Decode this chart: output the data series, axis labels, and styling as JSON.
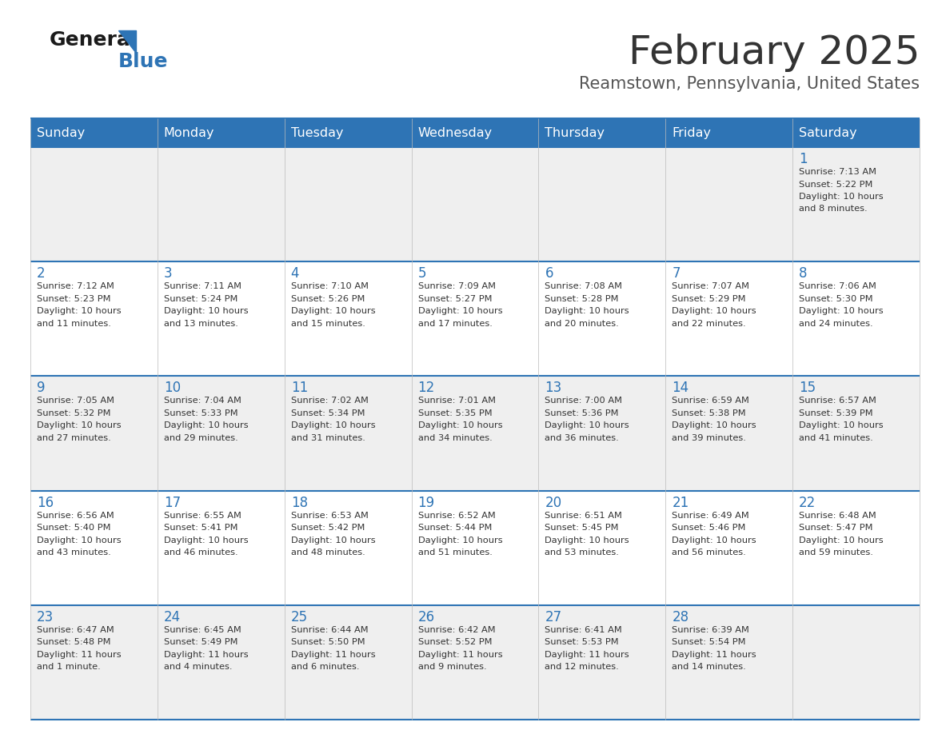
{
  "title": "February 2025",
  "subtitle": "Reamstown, Pennsylvania, United States",
  "header_bg": "#2e74b5",
  "header_text_color": "#ffffff",
  "day_names": [
    "Sunday",
    "Monday",
    "Tuesday",
    "Wednesday",
    "Thursday",
    "Friday",
    "Saturday"
  ],
  "row_bg_odd": "#efefef",
  "row_bg_even": "#ffffff",
  "separator_color": "#2e74b5",
  "day_number_color": "#2e74b5",
  "info_text_color": "#333333",
  "title_color": "#333333",
  "subtitle_color": "#555555",
  "calendar": [
    [
      {
        "day": null,
        "sunrise": null,
        "sunset": null,
        "daylight": null
      },
      {
        "day": null,
        "sunrise": null,
        "sunset": null,
        "daylight": null
      },
      {
        "day": null,
        "sunrise": null,
        "sunset": null,
        "daylight": null
      },
      {
        "day": null,
        "sunrise": null,
        "sunset": null,
        "daylight": null
      },
      {
        "day": null,
        "sunrise": null,
        "sunset": null,
        "daylight": null
      },
      {
        "day": null,
        "sunrise": null,
        "sunset": null,
        "daylight": null
      },
      {
        "day": 1,
        "sunrise": "7:13 AM",
        "sunset": "5:22 PM",
        "daylight": "10 hours\nand 8 minutes."
      }
    ],
    [
      {
        "day": 2,
        "sunrise": "7:12 AM",
        "sunset": "5:23 PM",
        "daylight": "10 hours\nand 11 minutes."
      },
      {
        "day": 3,
        "sunrise": "7:11 AM",
        "sunset": "5:24 PM",
        "daylight": "10 hours\nand 13 minutes."
      },
      {
        "day": 4,
        "sunrise": "7:10 AM",
        "sunset": "5:26 PM",
        "daylight": "10 hours\nand 15 minutes."
      },
      {
        "day": 5,
        "sunrise": "7:09 AM",
        "sunset": "5:27 PM",
        "daylight": "10 hours\nand 17 minutes."
      },
      {
        "day": 6,
        "sunrise": "7:08 AM",
        "sunset": "5:28 PM",
        "daylight": "10 hours\nand 20 minutes."
      },
      {
        "day": 7,
        "sunrise": "7:07 AM",
        "sunset": "5:29 PM",
        "daylight": "10 hours\nand 22 minutes."
      },
      {
        "day": 8,
        "sunrise": "7:06 AM",
        "sunset": "5:30 PM",
        "daylight": "10 hours\nand 24 minutes."
      }
    ],
    [
      {
        "day": 9,
        "sunrise": "7:05 AM",
        "sunset": "5:32 PM",
        "daylight": "10 hours\nand 27 minutes."
      },
      {
        "day": 10,
        "sunrise": "7:04 AM",
        "sunset": "5:33 PM",
        "daylight": "10 hours\nand 29 minutes."
      },
      {
        "day": 11,
        "sunrise": "7:02 AM",
        "sunset": "5:34 PM",
        "daylight": "10 hours\nand 31 minutes."
      },
      {
        "day": 12,
        "sunrise": "7:01 AM",
        "sunset": "5:35 PM",
        "daylight": "10 hours\nand 34 minutes."
      },
      {
        "day": 13,
        "sunrise": "7:00 AM",
        "sunset": "5:36 PM",
        "daylight": "10 hours\nand 36 minutes."
      },
      {
        "day": 14,
        "sunrise": "6:59 AM",
        "sunset": "5:38 PM",
        "daylight": "10 hours\nand 39 minutes."
      },
      {
        "day": 15,
        "sunrise": "6:57 AM",
        "sunset": "5:39 PM",
        "daylight": "10 hours\nand 41 minutes."
      }
    ],
    [
      {
        "day": 16,
        "sunrise": "6:56 AM",
        "sunset": "5:40 PM",
        "daylight": "10 hours\nand 43 minutes."
      },
      {
        "day": 17,
        "sunrise": "6:55 AM",
        "sunset": "5:41 PM",
        "daylight": "10 hours\nand 46 minutes."
      },
      {
        "day": 18,
        "sunrise": "6:53 AM",
        "sunset": "5:42 PM",
        "daylight": "10 hours\nand 48 minutes."
      },
      {
        "day": 19,
        "sunrise": "6:52 AM",
        "sunset": "5:44 PM",
        "daylight": "10 hours\nand 51 minutes."
      },
      {
        "day": 20,
        "sunrise": "6:51 AM",
        "sunset": "5:45 PM",
        "daylight": "10 hours\nand 53 minutes."
      },
      {
        "day": 21,
        "sunrise": "6:49 AM",
        "sunset": "5:46 PM",
        "daylight": "10 hours\nand 56 minutes."
      },
      {
        "day": 22,
        "sunrise": "6:48 AM",
        "sunset": "5:47 PM",
        "daylight": "10 hours\nand 59 minutes."
      }
    ],
    [
      {
        "day": 23,
        "sunrise": "6:47 AM",
        "sunset": "5:48 PM",
        "daylight": "11 hours\nand 1 minute."
      },
      {
        "day": 24,
        "sunrise": "6:45 AM",
        "sunset": "5:49 PM",
        "daylight": "11 hours\nand 4 minutes."
      },
      {
        "day": 25,
        "sunrise": "6:44 AM",
        "sunset": "5:50 PM",
        "daylight": "11 hours\nand 6 minutes."
      },
      {
        "day": 26,
        "sunrise": "6:42 AM",
        "sunset": "5:52 PM",
        "daylight": "11 hours\nand 9 minutes."
      },
      {
        "day": 27,
        "sunrise": "6:41 AM",
        "sunset": "5:53 PM",
        "daylight": "11 hours\nand 12 minutes."
      },
      {
        "day": 28,
        "sunrise": "6:39 AM",
        "sunset": "5:54 PM",
        "daylight": "11 hours\nand 14 minutes."
      },
      {
        "day": null,
        "sunrise": null,
        "sunset": null,
        "daylight": null
      }
    ]
  ],
  "logo_general_color": "#1a1a1a",
  "logo_blue_color": "#2e74b5",
  "logo_triangle_color": "#2e74b5"
}
